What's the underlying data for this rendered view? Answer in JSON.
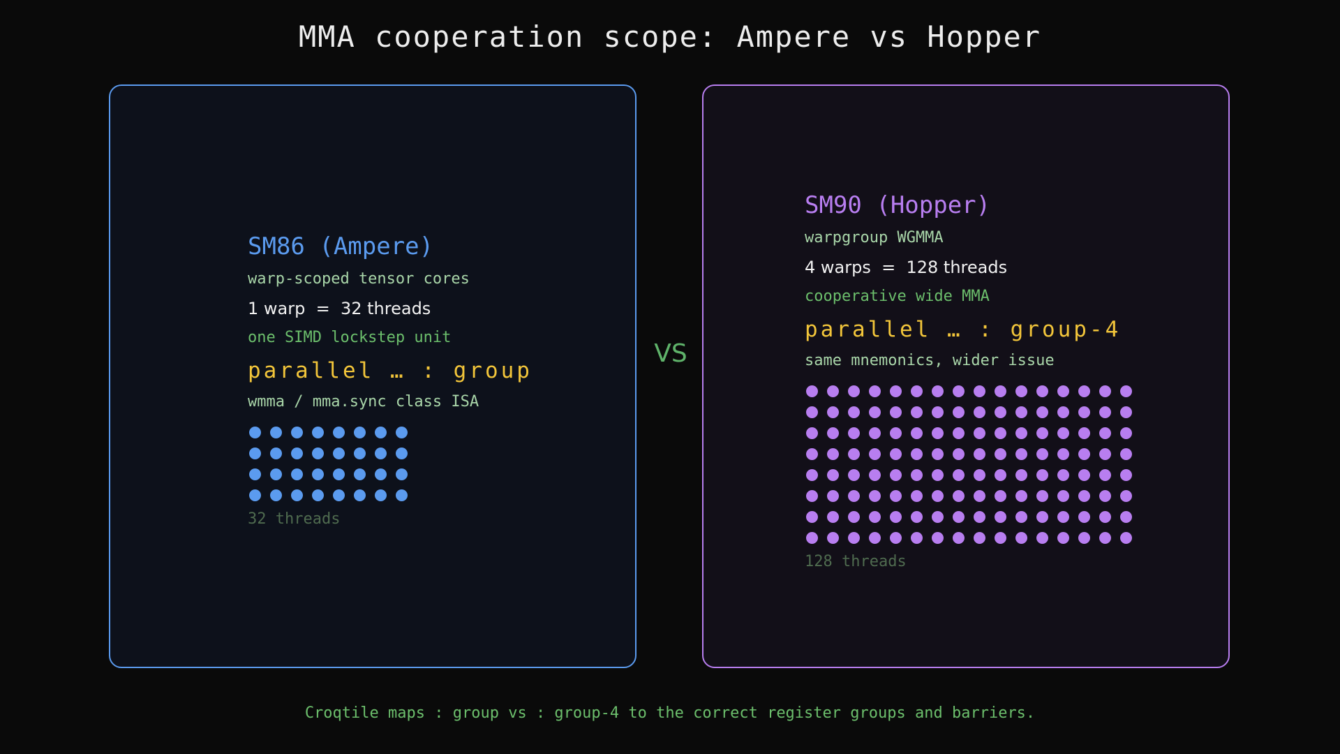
{
  "title": "MMA cooperation scope: Ampere vs Hopper",
  "vs_label": "VS",
  "caption": "Croqtile maps : group vs : group-4 to the correct register groups and barriers.",
  "colors": {
    "background": "#0a0a0a",
    "ampere_accent": "#5b9bef",
    "hopper_accent": "#b87ef0",
    "parallel_yellow": "#f2c53a",
    "green_text": "#6cbf6c",
    "light_green_text": "#a9d6a9",
    "vs_green": "#5fb36a",
    "footnote_gray": "#4f6b4f"
  },
  "ampere": {
    "heading": "SM86 (Ampere)",
    "subtitle": "warp-scoped tensor cores",
    "count_line": "1 warp  =  32 threads",
    "description": "one SIMD lockstep unit",
    "parallel": "parallel … : group",
    "isa": "wmma / mma.sync class ISA",
    "threads": 32,
    "dot_columns": 8,
    "footnote": "32 threads"
  },
  "hopper": {
    "heading": "SM90 (Hopper)",
    "subtitle": "warpgroup WGMMA",
    "count_line": "4 warps  =  128 threads",
    "description": "cooperative wide MMA",
    "parallel": "parallel … : group-4",
    "isa": "same mnemonics, wider issue",
    "threads": 128,
    "dot_columns": 16,
    "footnote": "128 threads"
  }
}
